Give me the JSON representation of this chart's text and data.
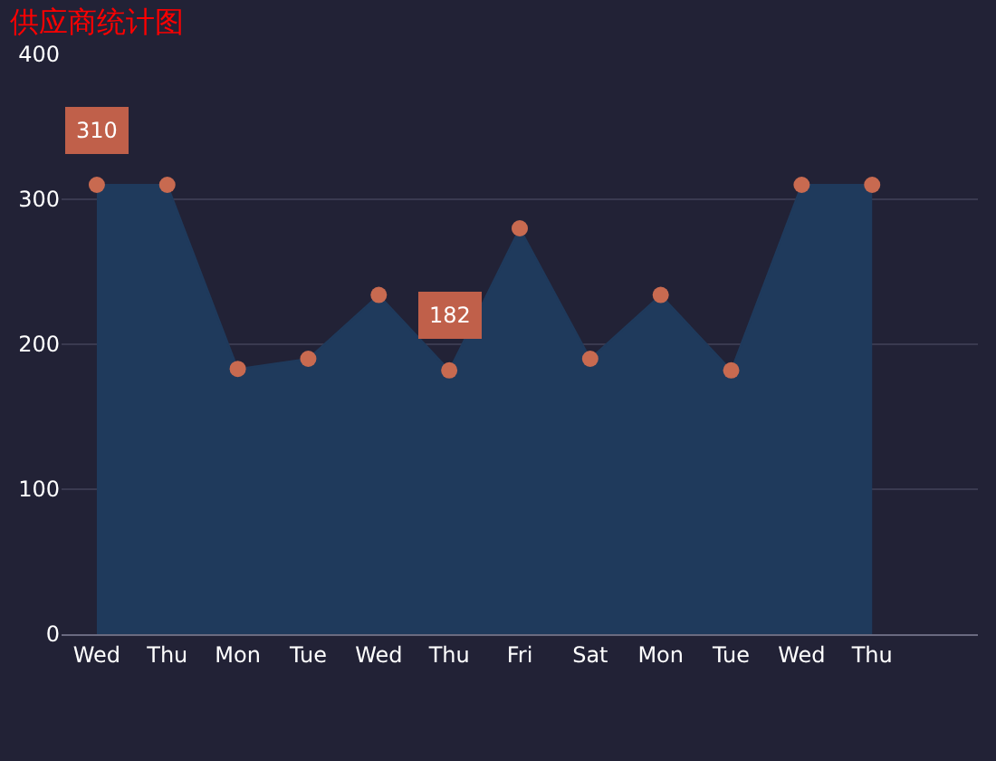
{
  "chart_data": {
    "type": "area",
    "title": "供应商统计图",
    "categories": [
      "Wed",
      "Thu",
      "Mon",
      "Tue",
      "Wed",
      "Thu",
      "Fri",
      "Sat",
      "Mon",
      "Tue",
      "Wed",
      "Thu"
    ],
    "values": [
      310,
      310,
      183,
      190,
      234,
      182,
      280,
      190,
      234,
      182,
      310,
      310
    ],
    "value_labels": [
      "310",
      null,
      null,
      null,
      null,
      "182",
      null,
      null,
      null,
      null,
      null,
      null
    ],
    "color": "#1f3a5c",
    "ylim": [
      0,
      400
    ],
    "yticks": [
      0,
      100,
      200,
      300,
      400
    ],
    "grid": "y",
    "marker": "circle",
    "line_style": "solid"
  }
}
